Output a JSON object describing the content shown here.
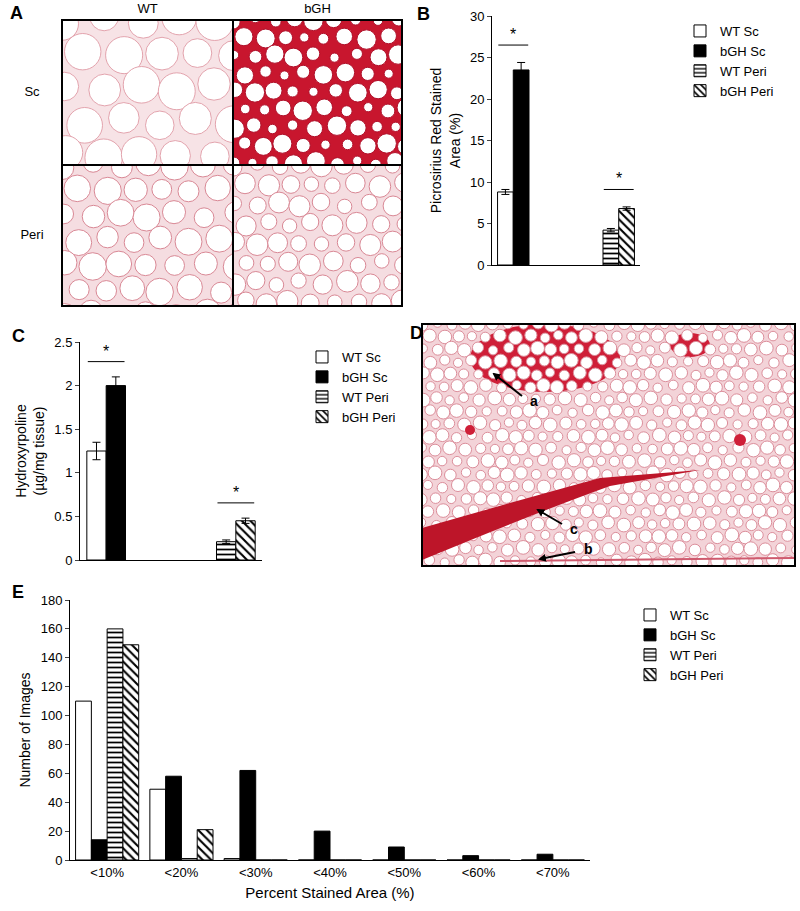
{
  "chart_data": [
    {
      "type": "bar",
      "title": "B",
      "categories": [
        null,
        null
      ],
      "ylabel": "Picrosirius Red Stained\nArea (%)",
      "ylim": [
        0,
        30
      ],
      "yticks": [
        0,
        5,
        10,
        15,
        20,
        25,
        30
      ],
      "grid": false,
      "legend": "upper right",
      "tick_labels": "y",
      "series": [
        {
          "name": "WT Sc",
          "color": "#ffffff",
          "marker": "solid",
          "values": [
            8.8,
            null
          ],
          "errors": [
            0.3,
            null
          ]
        },
        {
          "name": "bGH Sc",
          "color": "#000000",
          "marker": "solid",
          "values": [
            23.5,
            null
          ],
          "errors": [
            0.9,
            null
          ]
        },
        {
          "name": "WT Peri",
          "color": "#ffffff",
          "marker": "horizontal",
          "values": [
            null,
            4.2
          ],
          "errors": [
            null,
            0.2
          ]
        },
        {
          "name": "bGH Peri",
          "color": "#ffffff",
          "marker": "diagonal",
          "values": [
            null,
            6.8
          ],
          "errors": [
            null,
            0.2
          ]
        }
      ],
      "annotations": [
        {
          "text": "*",
          "category": 0
        },
        {
          "text": "*",
          "category": 1
        }
      ]
    },
    {
      "type": "bar",
      "title": "C",
      "categories": [
        null,
        null
      ],
      "ylabel": "Hydroxyrpoline\n(µg/mg tissue)",
      "ylim": [
        0,
        2.5
      ],
      "yticks": [
        0,
        0.5,
        1,
        1.5,
        2,
        2.5
      ],
      "grid": false,
      "legend": "upper right",
      "tick_labels": "y",
      "series": [
        {
          "name": "WT Sc",
          "color": "#ffffff",
          "marker": "solid",
          "values": [
            1.25,
            null
          ],
          "errors": [
            0.1,
            null
          ]
        },
        {
          "name": "bGH Sc",
          "color": "#000000",
          "marker": "solid",
          "values": [
            2.0,
            null
          ],
          "errors": [
            0.1,
            null
          ]
        },
        {
          "name": "WT Peri",
          "color": "#ffffff",
          "marker": "horizontal",
          "values": [
            null,
            0.21
          ],
          "errors": [
            null,
            0.02
          ]
        },
        {
          "name": "bGH Peri",
          "color": "#ffffff",
          "marker": "diagonal",
          "values": [
            null,
            0.45
          ],
          "errors": [
            null,
            0.03
          ]
        }
      ],
      "annotations": [
        {
          "text": "*",
          "category": 0
        },
        {
          "text": "*",
          "category": 1
        }
      ]
    },
    {
      "type": "bar",
      "title": "E",
      "categories": [
        "<10%",
        "<20%",
        "<30%",
        "<40%",
        "<50%",
        "<60%",
        "<70%"
      ],
      "xlabel": "Percent Stained Area (%)",
      "ylabel": "Number of Images",
      "ylim": [
        0,
        180
      ],
      "yticks": [
        0,
        20,
        40,
        60,
        80,
        100,
        120,
        140,
        160,
        180
      ],
      "grid": false,
      "legend": "upper right",
      "series": [
        {
          "name": "WT Sc",
          "color": "#ffffff",
          "marker": "solid",
          "values": [
            110,
            49,
            1,
            0,
            0,
            0,
            0
          ]
        },
        {
          "name": "bGH Sc",
          "color": "#000000",
          "marker": "solid",
          "values": [
            14,
            58,
            62,
            20,
            9,
            3,
            4
          ]
        },
        {
          "name": "WT Peri",
          "color": "#ffffff",
          "marker": "horizontal",
          "values": [
            160,
            1,
            0,
            0,
            0,
            0,
            0
          ]
        },
        {
          "name": "bGH Peri",
          "color": "#ffffff",
          "marker": "diagonal",
          "values": [
            149,
            21,
            0,
            0,
            0,
            0,
            0
          ]
        }
      ]
    }
  ],
  "image_panels": [
    {
      "label": "A",
      "columns": [
        "WT",
        "bGH"
      ],
      "rows": [
        "Sc",
        "Peri"
      ]
    },
    {
      "label": "D",
      "arrows": [
        "a",
        "b",
        "c"
      ]
    }
  ]
}
